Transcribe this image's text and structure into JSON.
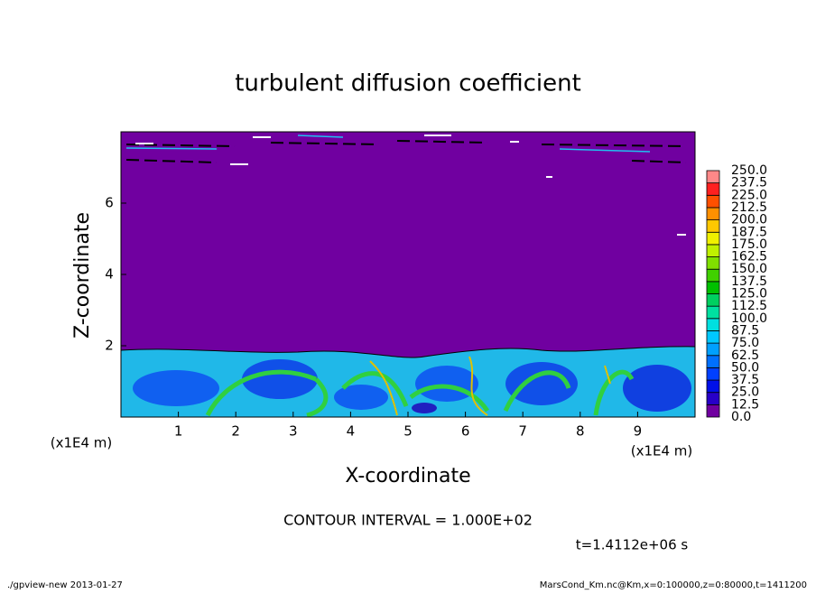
{
  "chart_data": {
    "type": "heatmap",
    "title": "turbulent diffusion coefficient",
    "x_label": "X-coordinate",
    "y_label": "Z-coordinate",
    "x_unit_label": "(x1E4 m)",
    "y_unit_label": "(x1E4 m)",
    "xlim": [
      0,
      10
    ],
    "ylim": [
      0,
      8
    ],
    "xticks": [
      1,
      2,
      3,
      4,
      5,
      6,
      7,
      8,
      9
    ],
    "yticks": [
      2,
      4,
      6
    ],
    "annotations": [
      "CONTOUR INTERVAL = 1.000E+02",
      "t=1.4112e+06 s"
    ],
    "footer_left": "./gpview-new  2013-01-27",
    "footer_right": "MarsCond_Km.nc@Km,x=0:100000,z=0:80000,t=1411200",
    "colorbar": {
      "levels": [
        {
          "value": 0,
          "label": "0.0"
        },
        {
          "value": 12.5,
          "label": "12.5"
        },
        {
          "value": 25,
          "label": "25.0"
        },
        {
          "value": 37.5,
          "label": "37.5"
        },
        {
          "value": 50,
          "label": "50.0"
        },
        {
          "value": 62.5,
          "label": "62.5"
        },
        {
          "value": 75,
          "label": "75.0"
        },
        {
          "value": 87.5,
          "label": "87.5"
        },
        {
          "value": 100,
          "label": "100.0"
        },
        {
          "value": 112.5,
          "label": "112.5"
        },
        {
          "value": 125,
          "label": "125.0"
        },
        {
          "value": 137.5,
          "label": "137.5"
        },
        {
          "value": 150,
          "label": "150.0"
        },
        {
          "value": 162.5,
          "label": "162.5"
        },
        {
          "value": 175,
          "label": "175.0"
        },
        {
          "value": 187.5,
          "label": "187.5"
        },
        {
          "value": 200,
          "label": "200.0"
        },
        {
          "value": 212.5,
          "label": "212.5"
        },
        {
          "value": 225,
          "label": "225.0"
        },
        {
          "value": 237.5,
          "label": "237.5"
        },
        {
          "value": 250,
          "label": "250.0"
        }
      ],
      "colors": [
        "#7000a0",
        "#2800c8",
        "#0010e8",
        "#0040ff",
        "#0070ff",
        "#00a0ff",
        "#00c8ff",
        "#00e0e0",
        "#00e0a0",
        "#00d060",
        "#00c000",
        "#40d000",
        "#80e000",
        "#c0f000",
        "#f0f000",
        "#ffc800",
        "#ff9000",
        "#ff5000",
        "#ff2020",
        "#ff8888"
      ]
    }
  }
}
